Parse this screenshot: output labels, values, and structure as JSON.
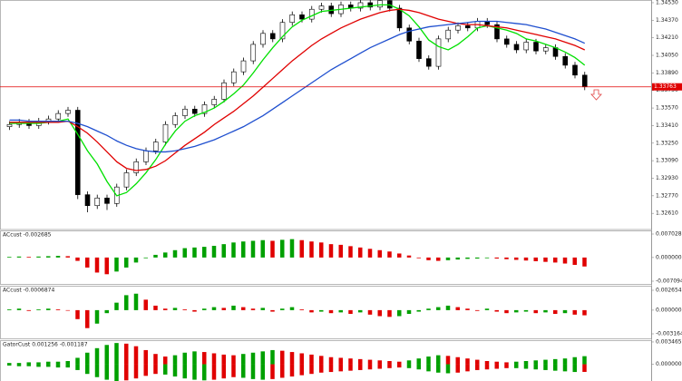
{
  "chart_data": [
    {
      "type": "candlestick",
      "open": [
        1.334,
        1.3342,
        1.3344,
        1.3341,
        1.3345,
        1.3347,
        1.3352,
        1.3355,
        1.3278,
        1.3268,
        1.3275,
        1.327,
        1.3285,
        1.3298,
        1.3308,
        1.3318,
        1.3326,
        1.3342,
        1.335,
        1.3356,
        1.3352,
        1.336,
        1.3365,
        1.338,
        1.339,
        1.34,
        1.3415,
        1.3425,
        1.342,
        1.3435,
        1.3442,
        1.3438,
        1.3447,
        1.345,
        1.3443,
        1.3451,
        1.3448,
        1.3453,
        1.3449,
        1.3455,
        1.3448,
        1.343,
        1.3418,
        1.3402,
        1.3395,
        1.342,
        1.3428,
        1.3432,
        1.343,
        1.3436,
        1.3433,
        1.342,
        1.3415,
        1.341,
        1.3417,
        1.3409,
        1.3412,
        1.3404,
        1.3396,
        1.3387
      ],
      "high": [
        1.3345,
        1.3347,
        1.3347,
        1.3348,
        1.335,
        1.3355,
        1.3358,
        1.3358,
        1.3281,
        1.3278,
        1.3278,
        1.3288,
        1.3301,
        1.3311,
        1.3321,
        1.3329,
        1.3345,
        1.3353,
        1.3359,
        1.3359,
        1.3363,
        1.3368,
        1.3383,
        1.3393,
        1.3403,
        1.3418,
        1.3428,
        1.3428,
        1.3438,
        1.3445,
        1.3445,
        1.345,
        1.3453,
        1.3453,
        1.3454,
        1.3454,
        1.3456,
        1.3456,
        1.3458,
        1.3458,
        1.3451,
        1.3433,
        1.3421,
        1.3405,
        1.3423,
        1.3431,
        1.3435,
        1.3435,
        1.3439,
        1.3439,
        1.3436,
        1.3423,
        1.3418,
        1.342,
        1.342,
        1.3415,
        1.3415,
        1.3407,
        1.3399,
        1.339
      ],
      "low": [
        1.3337,
        1.3339,
        1.3338,
        1.3338,
        1.3342,
        1.3344,
        1.3349,
        1.3274,
        1.3262,
        1.3265,
        1.3264,
        1.3267,
        1.3282,
        1.3295,
        1.3305,
        1.3315,
        1.3323,
        1.3339,
        1.3347,
        1.3349,
        1.3349,
        1.3357,
        1.3362,
        1.3377,
        1.3387,
        1.3397,
        1.3412,
        1.3417,
        1.3417,
        1.3432,
        1.3435,
        1.3435,
        1.3444,
        1.344,
        1.344,
        1.3445,
        1.3445,
        1.3446,
        1.3446,
        1.3445,
        1.3427,
        1.3415,
        1.3399,
        1.3392,
        1.3392,
        1.3417,
        1.3425,
        1.3427,
        1.3427,
        1.343,
        1.3417,
        1.3412,
        1.3407,
        1.3407,
        1.3406,
        1.3406,
        1.3401,
        1.3393,
        1.3384,
        1.33733
      ],
      "close": [
        1.3342,
        1.3344,
        1.3341,
        1.3345,
        1.3347,
        1.3352,
        1.3355,
        1.3278,
        1.3268,
        1.3275,
        1.327,
        1.3285,
        1.3298,
        1.3308,
        1.3318,
        1.3326,
        1.3342,
        1.335,
        1.3356,
        1.3352,
        1.336,
        1.3365,
        1.338,
        1.339,
        1.34,
        1.3415,
        1.3425,
        1.342,
        1.3435,
        1.3442,
        1.3438,
        1.3447,
        1.345,
        1.3443,
        1.3451,
        1.3448,
        1.3453,
        1.3449,
        1.3455,
        1.3448,
        1.343,
        1.3418,
        1.3402,
        1.3395,
        1.342,
        1.3428,
        1.3432,
        1.343,
        1.3436,
        1.3433,
        1.342,
        1.3415,
        1.341,
        1.3417,
        1.3409,
        1.3412,
        1.3404,
        1.3396,
        1.3387,
        1.33763
      ],
      "series": [
        {
          "color": "#00e000",
          "values": [
            1.3343,
            1.3343,
            1.3343,
            1.3343,
            1.3344,
            1.3345,
            1.3347,
            1.3333,
            1.3318,
            1.3306,
            1.329,
            1.3277,
            1.328,
            1.3288,
            1.3298,
            1.331,
            1.3324,
            1.3336,
            1.3345,
            1.335,
            1.3353,
            1.3357,
            1.3363,
            1.337,
            1.3378,
            1.3389,
            1.3401,
            1.3412,
            1.3422,
            1.3431,
            1.3437,
            1.3441,
            1.3445,
            1.3446,
            1.3447,
            1.3448,
            1.3449,
            1.345,
            1.3451,
            1.3451,
            1.3447,
            1.3441,
            1.3431,
            1.3419,
            1.3413,
            1.341,
            1.3415,
            1.3422,
            1.343,
            1.3432,
            1.343,
            1.3428,
            1.3425,
            1.342,
            1.3418,
            1.3415,
            1.3412,
            1.3408,
            1.3403,
            1.3396
          ]
        },
        {
          "color": "#e00000",
          "values": [
            1.3344,
            1.3344,
            1.3344,
            1.3344,
            1.3344,
            1.3344,
            1.3345,
            1.334,
            1.3334,
            1.3326,
            1.3317,
            1.3308,
            1.3302,
            1.33,
            1.3301,
            1.3304,
            1.3309,
            1.3316,
            1.3323,
            1.3329,
            1.3335,
            1.3342,
            1.3348,
            1.3354,
            1.3361,
            1.3368,
            1.3376,
            1.3384,
            1.3392,
            1.34,
            1.3407,
            1.3414,
            1.342,
            1.3425,
            1.343,
            1.3434,
            1.3438,
            1.3441,
            1.3444,
            1.3446,
            1.3447,
            1.3446,
            1.3444,
            1.3441,
            1.3438,
            1.3436,
            1.3434,
            1.3433,
            1.3433,
            1.3432,
            1.3431,
            1.343,
            1.3428,
            1.3426,
            1.3424,
            1.3422,
            1.342,
            1.3417,
            1.3414,
            1.341
          ]
        },
        {
          "color": "#1f4fcf",
          "values": [
            1.3346,
            1.3346,
            1.3345,
            1.3345,
            1.3345,
            1.3345,
            1.3345,
            1.3343,
            1.334,
            1.3336,
            1.3332,
            1.3327,
            1.3323,
            1.332,
            1.3318,
            1.3317,
            1.3317,
            1.3318,
            1.332,
            1.3322,
            1.3325,
            1.3328,
            1.3332,
            1.3336,
            1.334,
            1.3345,
            1.335,
            1.3356,
            1.3362,
            1.3368,
            1.3374,
            1.338,
            1.3386,
            1.3392,
            1.3397,
            1.3402,
            1.3407,
            1.3412,
            1.3416,
            1.342,
            1.3424,
            1.3427,
            1.3429,
            1.3431,
            1.3432,
            1.3433,
            1.3434,
            1.3435,
            1.3436,
            1.3436,
            1.3436,
            1.3435,
            1.3434,
            1.3433,
            1.3431,
            1.3429,
            1.3426,
            1.3423,
            1.342,
            1.3416
          ]
        }
      ],
      "current_price": 1.33763,
      "current_color": "#e00000",
      "ylim": [
        1.32471,
        1.34538
      ],
      "yticks": [
        {
          "value": 1.3261,
          "label": "1.32610"
        },
        {
          "value": 1.3277,
          "label": "1.32770"
        },
        {
          "value": 1.3293,
          "label": "1.32930"
        },
        {
          "value": 1.3309,
          "label": "1.33090"
        },
        {
          "value": 1.3325,
          "label": "1.33250"
        },
        {
          "value": 1.3341,
          "label": "1.33410"
        },
        {
          "value": 1.3357,
          "label": "1.33570"
        },
        {
          "value": 1.3373,
          "label": "1.33730"
        },
        {
          "value": 1.3389,
          "label": "1.33890"
        },
        {
          "value": 1.3405,
          "label": "1.34050"
        },
        {
          "value": 1.3421,
          "label": "1.34210"
        },
        {
          "value": 1.3437,
          "label": "1.34370"
        },
        {
          "value": 1.3453,
          "label": "1.34530"
        }
      ]
    },
    {
      "type": "bar",
      "title": "ACcust -0.002685",
      "up_color": "#00a000",
      "down_color": "#e00000",
      "values": [
        0.0002,
        0.0003,
        0.0002,
        0.0003,
        0.0004,
        0.0005,
        0.0004,
        -0.001,
        -0.003,
        -0.0045,
        -0.005,
        -0.0042,
        -0.003,
        -0.0015,
        -0.0002,
        0.0008,
        0.0015,
        0.0022,
        0.0028,
        0.003,
        0.0032,
        0.0035,
        0.004,
        0.0045,
        0.0048,
        0.005,
        0.0052,
        0.005,
        0.0053,
        0.0055,
        0.0052,
        0.0048,
        0.0045,
        0.004,
        0.0038,
        0.0034,
        0.003,
        0.0026,
        0.0022,
        0.0018,
        0.0012,
        0.0006,
        -0.0002,
        -0.0008,
        -0.001,
        -0.0008,
        -0.0006,
        -0.0004,
        -0.0003,
        -0.0002,
        -0.0003,
        -0.0005,
        -0.0007,
        -0.0009,
        -0.0011,
        -0.0013,
        -0.0015,
        -0.0018,
        -0.0022,
        -0.002685
      ],
      "ylim": [
        -0.007094,
        0.007028
      ],
      "yticks": [
        -0.007094,
        {
          "value": 0,
          "label": "0.000000"
        },
        0.007028
      ]
    },
    {
      "type": "bar",
      "title": "ACcust -0.0006874",
      "up_color": "#00a000",
      "down_color": "#e00000",
      "values": [
        0.0001,
        0.0002,
        -0.0001,
        0.0001,
        0.0002,
        0.0001,
        0.0,
        -0.0012,
        -0.0024,
        -0.0018,
        -0.0004,
        0.001,
        0.002,
        0.0022,
        0.0014,
        0.0006,
        0.0002,
        0.0003,
        0.0001,
        -0.0002,
        0.0002,
        0.0004,
        0.0003,
        0.0006,
        0.0004,
        0.0002,
        0.0003,
        -0.0002,
        0.0002,
        0.0004,
        0.0001,
        -0.0003,
        -0.0002,
        -0.0004,
        -0.0003,
        -0.0005,
        -0.0003,
        -0.0006,
        -0.0008,
        -0.0009,
        -0.0008,
        -0.0005,
        -0.0002,
        0.0002,
        0.0004,
        0.0006,
        0.0004,
        0.0002,
        -0.0001,
        0.0002,
        -0.0002,
        -0.0004,
        -0.0003,
        -0.0002,
        -0.0004,
        -0.0003,
        -0.0005,
        -0.0004,
        -0.0006,
        -0.0006874
      ],
      "ylim": [
        -0.0031646,
        0.0026546
      ],
      "yticks": [
        -0.0031646,
        {
          "value": 0,
          "label": "0.000000"
        },
        0.0026546
      ]
    },
    {
      "type": "gator",
      "title": "GatorCust 0.001256 -0.001187",
      "up_color": "#00a000",
      "down_color": "#e00000",
      "series": [
        {
          "values": [
            0.0002,
            0.0002,
            0.0003,
            0.0003,
            0.0004,
            0.0004,
            0.0005,
            0.001,
            0.0018,
            0.0025,
            0.003,
            0.0033,
            0.0032,
            0.0028,
            0.0022,
            0.0016,
            0.0012,
            0.0014,
            0.0018,
            0.002,
            0.0019,
            0.0017,
            0.0015,
            0.0014,
            0.0016,
            0.0018,
            0.002,
            0.0022,
            0.0021,
            0.0019,
            0.0017,
            0.0015,
            0.0013,
            0.0011,
            0.001,
            0.0009,
            0.0008,
            0.0007,
            0.0006,
            0.0005,
            0.0004,
            0.0006,
            0.0009,
            0.0012,
            0.0014,
            0.0013,
            0.0011,
            0.0009,
            0.0007,
            0.0005,
            0.0004,
            0.0003,
            0.0004,
            0.0005,
            0.0006,
            0.0007,
            0.0008,
            0.0009,
            0.0011,
            0.001256
          ]
        },
        {
          "values": [
            -0.0002,
            -0.0003,
            -0.0003,
            -0.0004,
            -0.0004,
            -0.0005,
            -0.0005,
            -0.0009,
            -0.0015,
            -0.002,
            -0.0024,
            -0.0026,
            -0.0025,
            -0.0022,
            -0.0018,
            -0.0015,
            -0.0016,
            -0.0019,
            -0.0022,
            -0.0024,
            -0.0025,
            -0.0024,
            -0.0022,
            -0.002,
            -0.0021,
            -0.0023,
            -0.0024,
            -0.0023,
            -0.0021,
            -0.0019,
            -0.0017,
            -0.0015,
            -0.0013,
            -0.0012,
            -0.0011,
            -0.001,
            -0.0009,
            -0.0008,
            -0.0007,
            -0.0006,
            -0.0005,
            -0.0006,
            -0.0008,
            -0.0011,
            -0.0013,
            -0.0014,
            -0.0013,
            -0.0011,
            -0.0009,
            -0.0008,
            -0.0007,
            -0.0006,
            -0.0006,
            -0.0007,
            -0.0008,
            -0.0009,
            -0.001,
            -0.0011,
            -0.0012,
            -0.001187
          ]
        }
      ],
      "ylim": [
        -0.0026,
        0.0036
      ],
      "yticks": [
        {
          "value": 0,
          "label": "0.000000"
        },
        0.003465
      ]
    }
  ]
}
